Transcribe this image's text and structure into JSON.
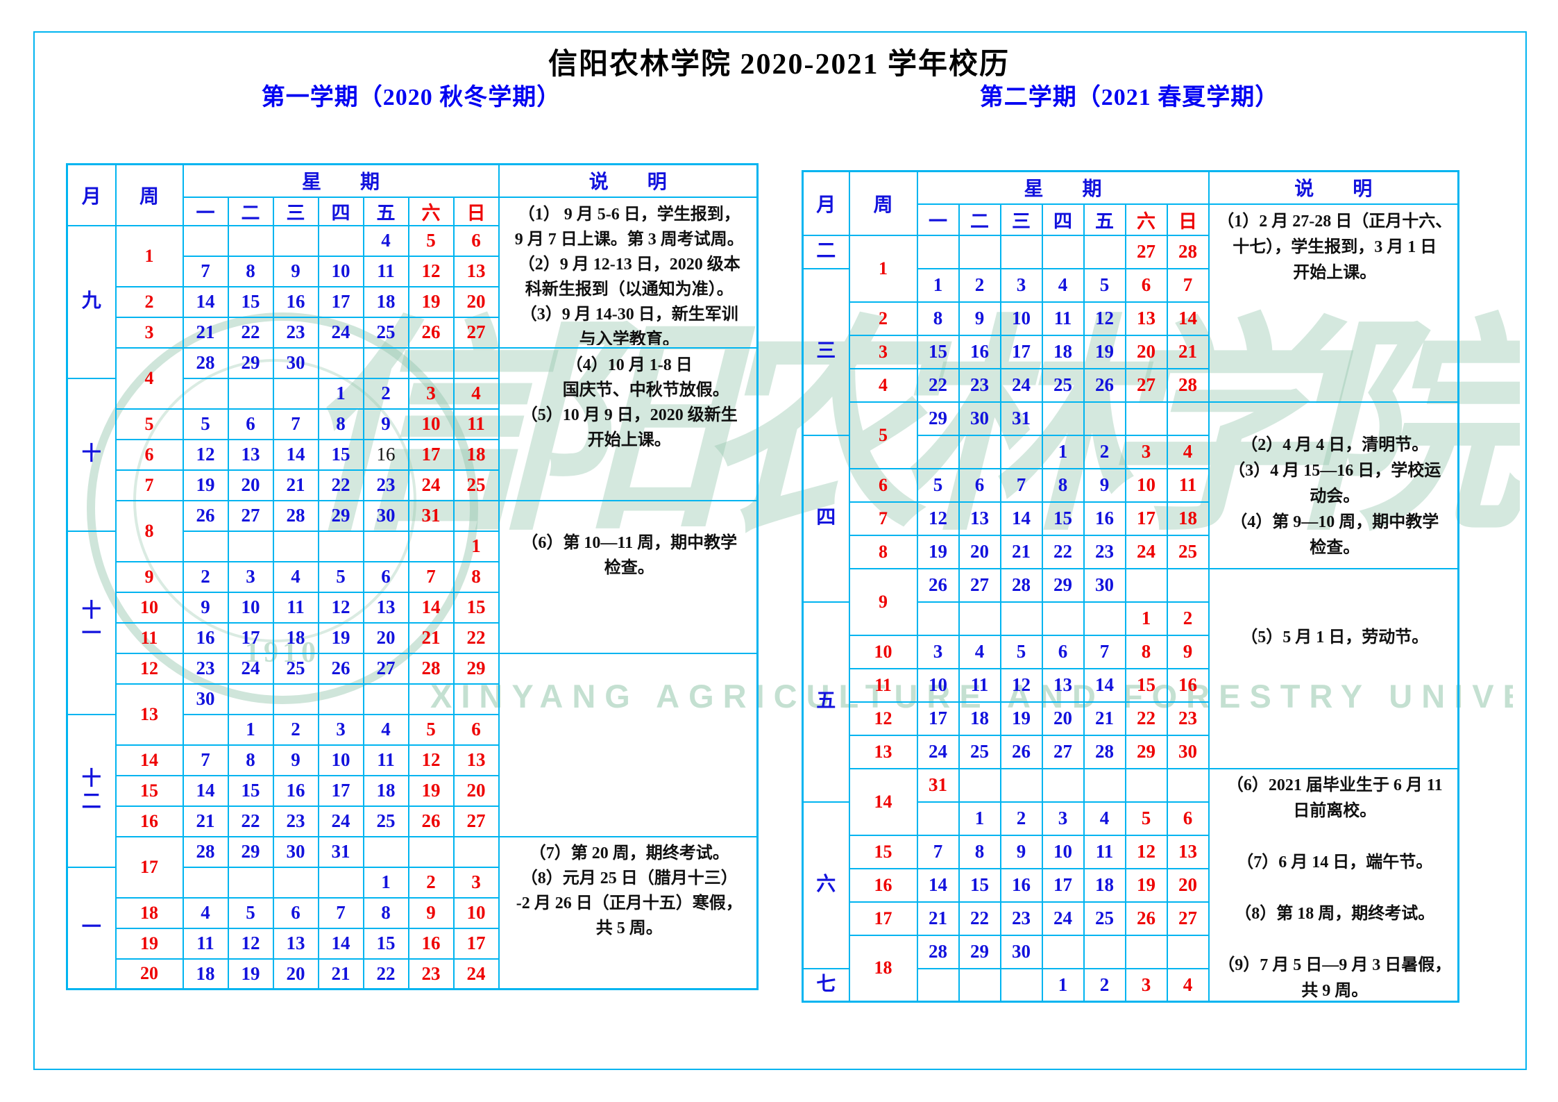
{
  "page": {
    "title": "信阳农林学院 2020-2021 学年校历",
    "border_color": "#00b4f0",
    "accent_blue": "#1212dd",
    "accent_red": "#ee0000",
    "watermark": {
      "cn": "信阳农林学院",
      "en": "XINYANG AGRICULTURE AND FORESTRY UNIVERSITY",
      "seal_year": "1910"
    }
  },
  "semesters": [
    {
      "heading": "第一学期（2020 秋冬学期）",
      "columns": {
        "month": "月",
        "week": "周",
        "week_banner": "星　　期",
        "notes": "说　　明"
      },
      "day_names": [
        "一",
        "二",
        "三",
        "四",
        "五",
        "六",
        "日"
      ],
      "months": [
        {
          "name": "九",
          "span": 5
        },
        {
          "name": "十",
          "span": 5
        },
        {
          "name": "十一",
          "span": 6
        },
        {
          "name": "十二",
          "span": 5
        },
        {
          "name": "一",
          "span": 4
        }
      ],
      "weeks": [
        {
          "num": "1",
          "span": 2
        },
        {
          "num": "2",
          "span": 1
        },
        {
          "num": "3",
          "span": 1
        },
        {
          "num": "4",
          "span": 2
        },
        {
          "num": "5",
          "span": 1
        },
        {
          "num": "6",
          "span": 1
        },
        {
          "num": "7",
          "span": 1
        },
        {
          "num": "8",
          "span": 2
        },
        {
          "num": "9",
          "span": 1
        },
        {
          "num": "10",
          "span": 1
        },
        {
          "num": "11",
          "span": 1
        },
        {
          "num": "12",
          "span": 1
        },
        {
          "num": "13",
          "span": 2
        },
        {
          "num": "14",
          "span": 1
        },
        {
          "num": "15",
          "span": 1
        },
        {
          "num": "16",
          "span": 1
        },
        {
          "num": "17",
          "span": 2
        },
        {
          "num": "18",
          "span": 1
        },
        {
          "num": "19",
          "span": 1
        },
        {
          "num": "20",
          "span": 1
        }
      ],
      "grid": [
        [
          "",
          "",
          "",
          "",
          "4",
          "5",
          "6"
        ],
        [
          "7",
          "8",
          "9",
          "10",
          "11",
          "12",
          "13"
        ],
        [
          "14",
          "15",
          "16",
          "17",
          "18",
          "19",
          "20"
        ],
        [
          "21",
          "22",
          "23",
          "24",
          "25",
          "26",
          "27"
        ],
        [
          "28",
          "29",
          "30",
          "",
          "",
          "",
          ""
        ],
        [
          "",
          "",
          "",
          "1",
          "2",
          "3",
          "4"
        ],
        [
          "5",
          "6",
          "7",
          "8",
          "9",
          "10",
          "11"
        ],
        [
          "12",
          "13",
          "14",
          "15",
          "16",
          "17",
          "18"
        ],
        [
          "19",
          "20",
          "21",
          "22",
          "23",
          "24",
          "25"
        ],
        [
          "26",
          "27",
          "28",
          "29",
          "30",
          "31",
          ""
        ],
        [
          "",
          "",
          "",
          "",
          "",
          "",
          "1"
        ],
        [
          "2",
          "3",
          "4",
          "5",
          "6",
          "7",
          "8"
        ],
        [
          "9",
          "10",
          "11",
          "12",
          "13",
          "14",
          "15"
        ],
        [
          "16",
          "17",
          "18",
          "19",
          "20",
          "21",
          "22"
        ],
        [
          "23",
          "24",
          "25",
          "26",
          "27",
          "28",
          "29"
        ],
        [
          "30",
          "",
          "",
          "",
          "",
          "",
          ""
        ],
        [
          "",
          "1",
          "2",
          "3",
          "4",
          "5",
          "6"
        ],
        [
          "7",
          "8",
          "9",
          "10",
          "11",
          "12",
          "13"
        ],
        [
          "14",
          "15",
          "16",
          "17",
          "18",
          "19",
          "20"
        ],
        [
          "21",
          "22",
          "23",
          "24",
          "25",
          "26",
          "27"
        ],
        [
          "28",
          "29",
          "30",
          "31",
          "",
          "",
          ""
        ],
        [
          "",
          "",
          "",
          "",
          "1",
          "2",
          "3"
        ],
        [
          "4",
          "5",
          "6",
          "7",
          "8",
          "9",
          "10"
        ],
        [
          "11",
          "12",
          "13",
          "14",
          "15",
          "16",
          "17"
        ],
        [
          "18",
          "19",
          "20",
          "21",
          "22",
          "23",
          "24"
        ]
      ],
      "color_overrides": {
        "7-4": "black"
      },
      "notes": [
        {
          "span": 4,
          "text": "（1） 9 月 5-6 日，学生报到，\n9 月 7 日上课。第 3 周考试周。\n（2）9 月 12-13 日，2020 级本\n科新生报到（以通知为准）。\n（3）9 月 14-30 日，新生军训\n与入学教育。"
        },
        {
          "span": 5,
          "text": "（4）10 月 1-8 日\n　　国庆节、中秋节放假。\n（5）10 月 9 日，2020 级新生\n开始上课。"
        },
        {
          "span": 5,
          "text": "\n（6）第 10—11 周，期中教学\n检查。"
        },
        {
          "span": 6,
          "text": ""
        },
        {
          "span": 5,
          "text": "（7）第 20 周，期终考试。\n（8）元月 25 日（腊月十三）\n-2 月 26 日（正月十五）寒假，\n共 5 周。"
        }
      ]
    },
    {
      "heading": "第二学期（2021 春夏学期）",
      "columns": {
        "month": "月",
        "week": "周",
        "week_banner": "星　　期",
        "notes": "说　　明"
      },
      "day_names": [
        "一",
        "二",
        "三",
        "四",
        "五",
        "六",
        "日"
      ],
      "months": [
        {
          "name": "二",
          "span": 1
        },
        {
          "name": "三",
          "span": 5
        },
        {
          "name": "四",
          "span": 5
        },
        {
          "name": "五",
          "span": 6
        },
        {
          "name": "六",
          "span": 5
        },
        {
          "name": "七",
          "span": 1
        }
      ],
      "weeks": [
        {
          "num": "1",
          "span": 2
        },
        {
          "num": "2",
          "span": 1
        },
        {
          "num": "3",
          "span": 1
        },
        {
          "num": "4",
          "span": 1
        },
        {
          "num": "5",
          "span": 2
        },
        {
          "num": "6",
          "span": 1
        },
        {
          "num": "7",
          "span": 1
        },
        {
          "num": "8",
          "span": 1
        },
        {
          "num": "9",
          "span": 2
        },
        {
          "num": "10",
          "span": 1
        },
        {
          "num": "11",
          "span": 1
        },
        {
          "num": "12",
          "span": 1
        },
        {
          "num": "13",
          "span": 1
        },
        {
          "num": "14",
          "span": 2
        },
        {
          "num": "15",
          "span": 1
        },
        {
          "num": "16",
          "span": 1
        },
        {
          "num": "17",
          "span": 1
        },
        {
          "num": "18",
          "span": 2
        }
      ],
      "grid": [
        [
          "",
          "",
          "",
          "",
          "",
          "27",
          "28"
        ],
        [
          "1",
          "2",
          "3",
          "4",
          "5",
          "6",
          "7"
        ],
        [
          "8",
          "9",
          "10",
          "11",
          "12",
          "13",
          "14"
        ],
        [
          "15",
          "16",
          "17",
          "18",
          "19",
          "20",
          "21"
        ],
        [
          "22",
          "23",
          "24",
          "25",
          "26",
          "27",
          "28"
        ],
        [
          "29",
          "30",
          "31",
          "",
          "",
          "",
          ""
        ],
        [
          "",
          "",
          "",
          "1",
          "2",
          "3",
          "4"
        ],
        [
          "5",
          "6",
          "7",
          "8",
          "9",
          "10",
          "11"
        ],
        [
          "12",
          "13",
          "14",
          "15",
          "16",
          "17",
          "18"
        ],
        [
          "19",
          "20",
          "21",
          "22",
          "23",
          "24",
          "25"
        ],
        [
          "26",
          "27",
          "28",
          "29",
          "30",
          "",
          ""
        ],
        [
          "",
          "",
          "",
          "",
          "",
          "1",
          "2"
        ],
        [
          "3",
          "4",
          "5",
          "6",
          "7",
          "8",
          "9"
        ],
        [
          "10",
          "11",
          "12",
          "13",
          "14",
          "15",
          "16"
        ],
        [
          "17",
          "18",
          "19",
          "20",
          "21",
          "22",
          "23"
        ],
        [
          "24",
          "25",
          "26",
          "27",
          "28",
          "29",
          "30"
        ],
        [
          "31",
          "",
          "",
          "",
          "",
          "",
          ""
        ],
        [
          "",
          "1",
          "2",
          "3",
          "4",
          "5",
          "6"
        ],
        [
          "7",
          "8",
          "9",
          "10",
          "11",
          "12",
          "13"
        ],
        [
          "14",
          "15",
          "16",
          "17",
          "18",
          "19",
          "20"
        ],
        [
          "21",
          "22",
          "23",
          "24",
          "25",
          "26",
          "27"
        ],
        [
          "28",
          "29",
          "30",
          "",
          "",
          "",
          ""
        ],
        [
          "",
          "",
          "",
          "1",
          "2",
          "3",
          "4"
        ]
      ],
      "color_overrides": {
        "16-0": "red"
      },
      "notes": [
        {
          "span": 5,
          "text": "（1）2 月 27-28 日（正月十六、\n十七），学生报到，3 月 1 日\n开始上课。"
        },
        {
          "span": 5,
          "text": "\n（2）4 月 4 日，清明节。\n（3）4 月 15—16 日，学校运\n动会。\n（4）第 9—10 周，期中教学\n检查。"
        },
        {
          "span": 6,
          "text": "\n\n（5）5 月 1 日，劳动节。"
        },
        {
          "span": 7,
          "text": "（6）2021 届毕业生于 6 月 11\n日前离校。\n\n（7）6 月 14 日，端午节。\n\n（8）第 18 周，期终考试。\n\n（9）7 月 5 日—9 月 3 日暑假，\n共 9 周。"
        }
      ]
    }
  ]
}
